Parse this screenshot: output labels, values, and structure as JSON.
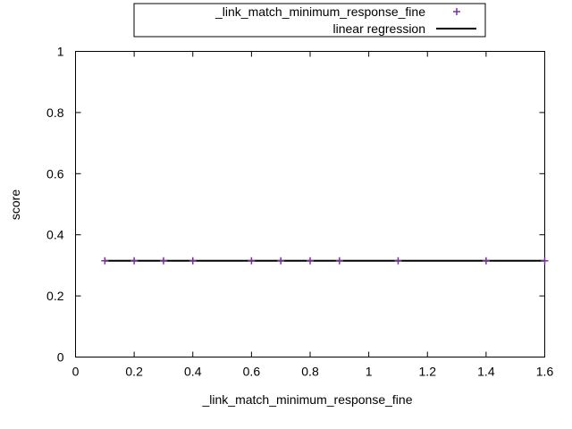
{
  "chart_data": {
    "type": "scatter",
    "xlabel": "_link_match_minimum_response_fine",
    "ylabel": "score",
    "xlim": [
      0,
      1.6
    ],
    "ylim": [
      0,
      1
    ],
    "x_ticks": [
      "0",
      "0.2",
      "0.4",
      "0.6",
      "0.8",
      "1",
      "1.2",
      "1.4",
      "1.6"
    ],
    "y_ticks": [
      "0",
      "0.2",
      "0.4",
      "0.6",
      "0.8",
      "1"
    ],
    "grid": false,
    "legend_position": "top",
    "series": [
      {
        "name": "_link_match_minimum_response_fine",
        "marker": "+",
        "color": "#7b2f9e",
        "x": [
          0.1,
          0.2,
          0.3,
          0.4,
          0.6,
          0.7,
          0.8,
          0.9,
          1.1,
          1.4,
          1.6
        ],
        "y": [
          0.315,
          0.315,
          0.315,
          0.315,
          0.315,
          0.315,
          0.315,
          0.315,
          0.315,
          0.315,
          0.315
        ]
      },
      {
        "name": "linear regression",
        "kind": "line",
        "color": "#000000",
        "x": [
          0.1,
          1.6
        ],
        "y": [
          0.315,
          0.315
        ]
      }
    ]
  }
}
